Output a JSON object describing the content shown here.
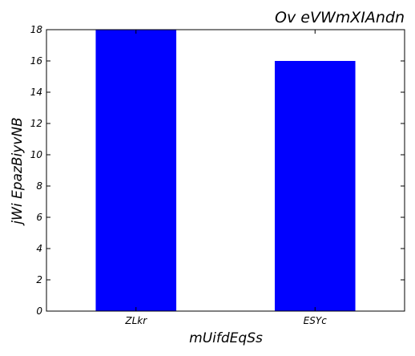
{
  "chart_data": {
    "type": "bar",
    "title": "Ov eVWmXIAndn",
    "xlabel": "mUifdEqSs",
    "ylabel": "jWi EpazBiyvNB",
    "categories": [
      "ZLkr",
      "ESYc"
    ],
    "values": [
      18,
      16
    ],
    "ylim": [
      0,
      18
    ],
    "yticks": [
      0,
      2,
      4,
      6,
      8,
      10,
      12,
      14,
      16,
      18
    ],
    "bar_color": "#0000ff",
    "grid": false
  }
}
